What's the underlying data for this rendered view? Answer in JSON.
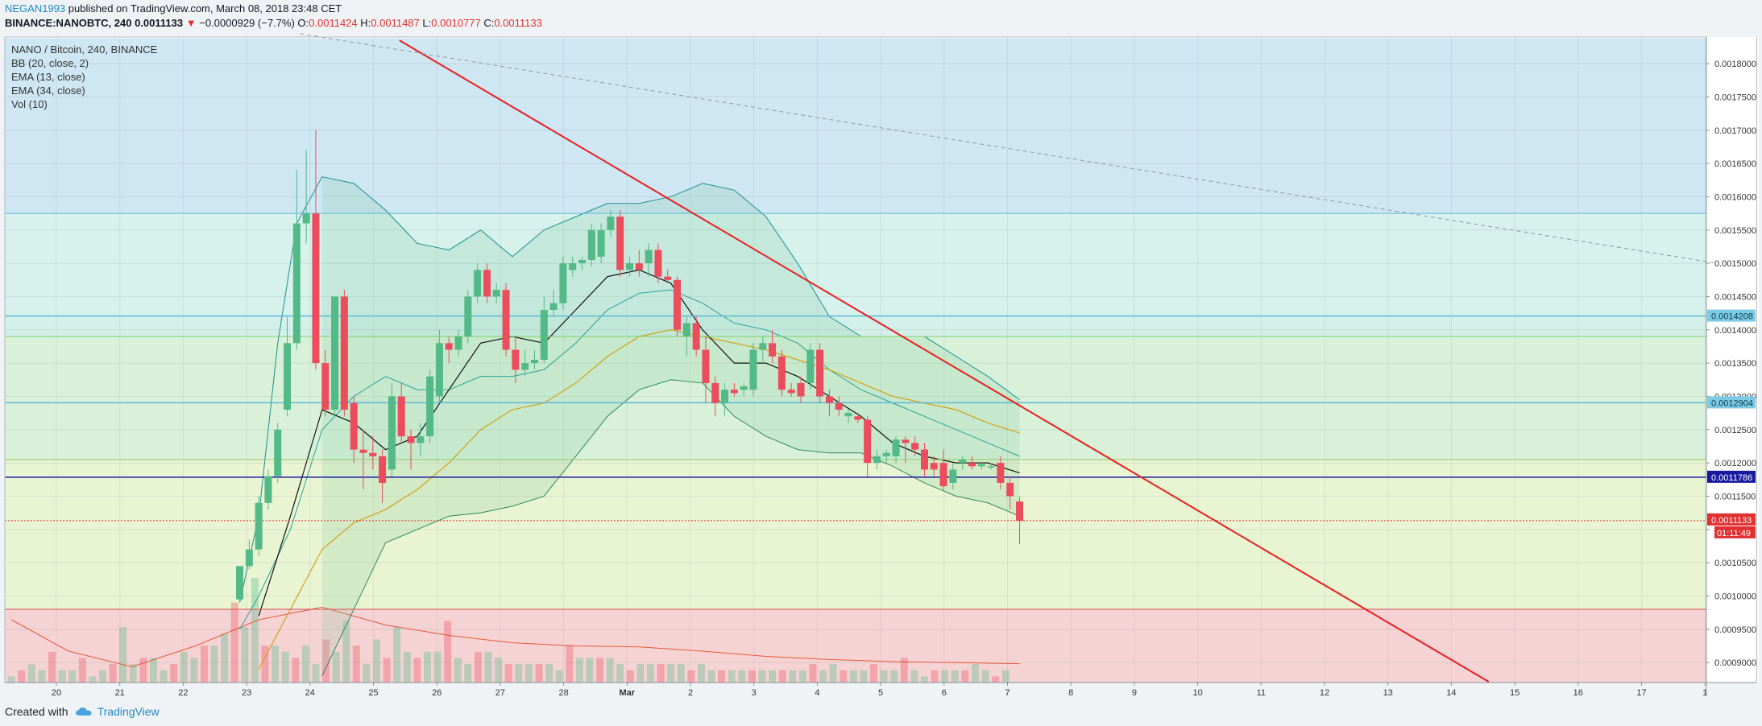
{
  "header": {
    "user": "NEGAN1993",
    "published_text": "published on TradingView.com, March 08, 2018 23:48 CET",
    "symbol": "BINANCE:NANOBTC, 240",
    "last_price": "0.0011133",
    "change_arrow": "▼",
    "change": "−0.0000929 (−7.7%)",
    "o_label": "O:",
    "o_value": "0.0011424",
    "h_label": "H:",
    "h_value": "0.0011487",
    "l_label": "L:",
    "l_value": "0.0010777",
    "c_label": "C:",
    "c_value": "0.0011133"
  },
  "legend": [
    "NANO / Bitcoin, 240, BINANCE",
    "BB (20, close, 2)",
    "EMA (13, close)",
    "EMA (34, close)",
    "Vol (10)"
  ],
  "footer": {
    "created_with": "Created with",
    "brand": "TradingView"
  },
  "colors": {
    "up": "#53b987",
    "down": "#eb4d5c",
    "ema13": "#111111",
    "ema34": "#d4a017",
    "bb_upper": "#1b8f8f",
    "bb_basis": "#2aa198",
    "bb_lower": "#2e8b57",
    "trendline": "#e62020",
    "support": "#1a1aa0",
    "current_price": "#e03030",
    "vol_ma": "#e8583a"
  },
  "chart_data": {
    "type": "candlestick",
    "y_axis": {
      "range": [
        0.00087,
        0.00184
      ],
      "ticks": [
        "0.0018000",
        "0.0017500",
        "0.0017000",
        "0.0016500",
        "0.0016000",
        "0.0015500",
        "0.0015000",
        "0.0014500",
        "0.0014000",
        "0.0013500",
        "0.0013000",
        "0.0012500",
        "0.0012000",
        "0.0011500",
        "0.0011000",
        "0.0010500",
        "0.0010000",
        "0.0009500",
        "0.0009000"
      ]
    },
    "x_axis": {
      "ticks": [
        "20",
        "21",
        "22",
        "23",
        "24",
        "25",
        "26",
        "27",
        "28",
        "Mar",
        "2",
        "3",
        "4",
        "5",
        "6",
        "7",
        "8",
        "9",
        "10",
        "11",
        "12",
        "13",
        "14",
        "15",
        "16",
        "17",
        "1"
      ]
    },
    "zones": [
      {
        "from": 0.001838,
        "to": 0.001575,
        "color": "#cfe6f3"
      },
      {
        "from": 0.001575,
        "to": 0.00142,
        "color": "#d7f1ec"
      },
      {
        "from": 0.00142,
        "to": 0.00139,
        "color": "#d3f0ea"
      },
      {
        "from": 0.00139,
        "to": 0.001205,
        "color": "#d9f1d9"
      },
      {
        "from": 0.001205,
        "to": 0.00098,
        "color": "#e9f4d2"
      },
      {
        "from": 0.00098,
        "to": 0.00087,
        "color": "#f5d3d4"
      }
    ],
    "horizontal_lines": [
      {
        "value": 0.0014208,
        "label": "0.0014208",
        "color": "#5bb9d6",
        "badge": "#7ccbe4"
      },
      {
        "value": 0.0012904,
        "label": "0.0012904",
        "color": "#5bb9d6",
        "badge": "#7ccbe4"
      },
      {
        "value": 0.0011786,
        "label": "0.0011786",
        "color": "#1a1aa0",
        "badge": "#1a1aa0"
      },
      {
        "value": 0.001575,
        "color": "#5bb9d6"
      },
      {
        "value": 0.00139,
        "color": "#7ccf6a"
      },
      {
        "value": 0.001205,
        "color": "#8cc864"
      },
      {
        "value": 0.00098,
        "color": "#d94a55"
      }
    ],
    "current_price": {
      "value": 0.0011133,
      "label": "0.0011133",
      "countdown": "01:11:49"
    },
    "trendlines": [
      {
        "points": [
          [
            6.22,
            0.001835
          ],
          [
            23.4,
            0.000871
          ]
        ],
        "color": "#e62020",
        "style": "solid"
      },
      {
        "points": [
          [
            4.65,
            0.001845
          ],
          [
            27.0,
            0.0015
          ]
        ],
        "color": "#8a9aa5",
        "style": "dashed"
      }
    ],
    "candles": [
      [
        3.7,
        0.000995,
        0.001045,
        0.00099,
        0.001045
      ],
      [
        3.85,
        0.001045,
        0.001085,
        0.00104,
        0.00107
      ],
      [
        4.0,
        0.00107,
        0.00115,
        0.00106,
        0.00114
      ],
      [
        4.15,
        0.00114,
        0.00119,
        0.00113,
        0.00118
      ],
      [
        4.3,
        0.00118,
        0.00126,
        0.00117,
        0.00125
      ],
      [
        4.45,
        0.00128,
        0.00142,
        0.00127,
        0.00138
      ],
      [
        4.6,
        0.00138,
        0.00164,
        0.00137,
        0.00156
      ],
      [
        4.75,
        0.00156,
        0.00167,
        0.00153,
        0.001575
      ],
      [
        4.9,
        0.001575,
        0.0017,
        0.00134,
        0.00135
      ],
      [
        5.05,
        0.00135,
        0.00137,
        0.00127,
        0.00128
      ],
      [
        5.2,
        0.00128,
        0.00145,
        0.00127,
        0.00145
      ],
      [
        5.35,
        0.00145,
        0.00146,
        0.00127,
        0.00128
      ],
      [
        5.5,
        0.00129,
        0.0013,
        0.0012,
        0.00122
      ],
      [
        5.65,
        0.00122,
        0.00125,
        0.00116,
        0.001215
      ],
      [
        5.8,
        0.001215,
        0.00124,
        0.00119,
        0.00121
      ],
      [
        5.95,
        0.00121,
        0.00122,
        0.00114,
        0.00117
      ],
      [
        6.1,
        0.00119,
        0.00132,
        0.00118,
        0.0013
      ],
      [
        6.25,
        0.0013,
        0.00132,
        0.00123,
        0.00124
      ],
      [
        6.4,
        0.00124,
        0.00125,
        0.00119,
        0.00123
      ],
      [
        6.55,
        0.00123,
        0.00126,
        0.00121,
        0.00124
      ],
      [
        6.7,
        0.00124,
        0.00134,
        0.00123,
        0.00133
      ],
      [
        6.85,
        0.0013,
        0.0014,
        0.00129,
        0.00138
      ],
      [
        7.0,
        0.00138,
        0.00139,
        0.00135,
        0.00137
      ],
      [
        7.15,
        0.00137,
        0.0014,
        0.00136,
        0.00139
      ],
      [
        7.3,
        0.00139,
        0.00146,
        0.00138,
        0.00145
      ],
      [
        7.45,
        0.00145,
        0.0015,
        0.00144,
        0.00149
      ],
      [
        7.6,
        0.00149,
        0.0015,
        0.00144,
        0.00145
      ],
      [
        7.75,
        0.00145,
        0.00147,
        0.00144,
        0.00146
      ],
      [
        7.9,
        0.00146,
        0.00147,
        0.00136,
        0.00137
      ],
      [
        8.05,
        0.00137,
        0.00139,
        0.00132,
        0.00134
      ],
      [
        8.2,
        0.00134,
        0.00137,
        0.00133,
        0.00135
      ],
      [
        8.35,
        0.00135,
        0.00137,
        0.00134,
        0.001355
      ],
      [
        8.5,
        0.001355,
        0.00145,
        0.00135,
        0.00143
      ],
      [
        8.65,
        0.00143,
        0.00146,
        0.00142,
        0.00144
      ],
      [
        8.8,
        0.00144,
        0.00151,
        0.00143,
        0.0015
      ],
      [
        8.95,
        0.00149,
        0.00151,
        0.00148,
        0.0015
      ],
      [
        9.1,
        0.0015,
        0.00151,
        0.00149,
        0.001505
      ],
      [
        9.25,
        0.001505,
        0.00156,
        0.001495,
        0.00155
      ],
      [
        9.4,
        0.00151,
        0.00156,
        0.0015,
        0.00155
      ],
      [
        9.55,
        0.00155,
        0.00158,
        0.00154,
        0.00157
      ],
      [
        9.7,
        0.00157,
        0.00158,
        0.00148,
        0.00149
      ],
      [
        9.85,
        0.00149,
        0.00151,
        0.00148,
        0.0015
      ],
      [
        10.0,
        0.0015,
        0.00152,
        0.00148,
        0.00149
      ],
      [
        10.15,
        0.0015,
        0.00153,
        0.00148,
        0.00152
      ],
      [
        10.3,
        0.00152,
        0.00153,
        0.00147,
        0.00148
      ],
      [
        10.45,
        0.00148,
        0.00149,
        0.00147,
        0.001475
      ],
      [
        10.6,
        0.001475,
        0.00148,
        0.00139,
        0.0014
      ],
      [
        10.75,
        0.00139,
        0.00142,
        0.00136,
        0.00141
      ],
      [
        10.9,
        0.00141,
        0.00142,
        0.00136,
        0.00137
      ],
      [
        11.05,
        0.00137,
        0.00139,
        0.00129,
        0.00132
      ],
      [
        11.2,
        0.00132,
        0.00133,
        0.00127,
        0.00129
      ],
      [
        11.35,
        0.00129,
        0.00132,
        0.00127,
        0.00131
      ],
      [
        11.5,
        0.00131,
        0.00132,
        0.0013,
        0.001305
      ],
      [
        11.65,
        0.00131,
        0.00132,
        0.0013,
        0.001315
      ],
      [
        11.8,
        0.00131,
        0.00138,
        0.0013,
        0.00137
      ],
      [
        11.95,
        0.00137,
        0.00139,
        0.00135,
        0.00138
      ],
      [
        12.1,
        0.00138,
        0.0014,
        0.00135,
        0.00136
      ],
      [
        12.25,
        0.00136,
        0.00137,
        0.0013,
        0.00131
      ],
      [
        12.4,
        0.00131,
        0.00132,
        0.0013,
        0.001305
      ],
      [
        12.55,
        0.00132,
        0.00133,
        0.00129,
        0.0013
      ],
      [
        12.7,
        0.00132,
        0.00138,
        0.00131,
        0.00137
      ],
      [
        12.85,
        0.00137,
        0.00138,
        0.00129,
        0.0013
      ],
      [
        13.0,
        0.0013,
        0.00131,
        0.00127,
        0.00129
      ],
      [
        13.15,
        0.00129,
        0.0013,
        0.00127,
        0.00128
      ],
      [
        13.3,
        0.00127,
        0.00128,
        0.00126,
        0.001275
      ],
      [
        13.45,
        0.00127,
        0.001275,
        0.00126,
        0.001265
      ],
      [
        13.6,
        0.001265,
        0.00127,
        0.00118,
        0.0012
      ],
      [
        13.75,
        0.0012,
        0.00122,
        0.00119,
        0.00121
      ],
      [
        13.9,
        0.00121,
        0.00122,
        0.0012,
        0.001215
      ],
      [
        14.05,
        0.00121,
        0.00124,
        0.0012,
        0.001235
      ],
      [
        14.2,
        0.001235,
        0.00124,
        0.0012,
        0.00123
      ],
      [
        14.35,
        0.00123,
        0.00124,
        0.00121,
        0.00122
      ],
      [
        14.5,
        0.00122,
        0.00123,
        0.00118,
        0.00119
      ],
      [
        14.65,
        0.0012,
        0.00121,
        0.00118,
        0.00119
      ],
      [
        14.8,
        0.0012,
        0.00122,
        0.00116,
        0.001165
      ],
      [
        14.95,
        0.00117,
        0.0012,
        0.00116,
        0.00119
      ],
      [
        15.1,
        0.0012,
        0.00121,
        0.00119,
        0.001205
      ],
      [
        15.25,
        0.0012,
        0.00121,
        0.00119,
        0.001195
      ],
      [
        15.4,
        0.001195,
        0.0012,
        0.00119,
        0.001198
      ],
      [
        15.55,
        0.001195,
        0.0012,
        0.00119,
        0.001195
      ],
      [
        15.7,
        0.0012,
        0.00121,
        0.00116,
        0.00117
      ],
      [
        15.85,
        0.00117,
        0.00118,
        0.00113,
        0.00115
      ],
      [
        16.0,
        0.001142,
        0.001149,
        0.001078,
        0.001113
      ]
    ],
    "ema13": [
      [
        4.0,
        0.00097
      ],
      [
        4.5,
        0.00112
      ],
      [
        5.0,
        0.00128
      ],
      [
        5.5,
        0.00126
      ],
      [
        6.0,
        0.00122
      ],
      [
        6.5,
        0.00124
      ],
      [
        7.0,
        0.00131
      ],
      [
        7.5,
        0.00138
      ],
      [
        8.0,
        0.00139
      ],
      [
        8.5,
        0.00138
      ],
      [
        9.0,
        0.00143
      ],
      [
        9.5,
        0.00148
      ],
      [
        10.0,
        0.00149
      ],
      [
        10.5,
        0.00147
      ],
      [
        11.0,
        0.0014
      ],
      [
        11.5,
        0.00135
      ],
      [
        12.0,
        0.00135
      ],
      [
        12.5,
        0.00133
      ],
      [
        13.0,
        0.0013
      ],
      [
        13.5,
        0.00127
      ],
      [
        14.0,
        0.00123
      ],
      [
        14.5,
        0.00121
      ],
      [
        15.0,
        0.0012
      ],
      [
        15.5,
        0.0012
      ],
      [
        16.0,
        0.001185
      ]
    ],
    "ema34": [
      [
        4.0,
        0.00089
      ],
      [
        4.5,
        0.00098
      ],
      [
        5.0,
        0.00107
      ],
      [
        5.5,
        0.00111
      ],
      [
        6.0,
        0.00113
      ],
      [
        6.5,
        0.00116
      ],
      [
        7.0,
        0.0012
      ],
      [
        7.5,
        0.00125
      ],
      [
        8.0,
        0.00128
      ],
      [
        8.5,
        0.00129
      ],
      [
        9.0,
        0.00132
      ],
      [
        9.5,
        0.00136
      ],
      [
        10.0,
        0.00139
      ],
      [
        10.5,
        0.0014
      ],
      [
        11.0,
        0.00139
      ],
      [
        11.5,
        0.00138
      ],
      [
        12.0,
        0.00137
      ],
      [
        12.5,
        0.001355
      ],
      [
        13.0,
        0.00134
      ],
      [
        13.5,
        0.00132
      ],
      [
        14.0,
        0.0013
      ],
      [
        14.5,
        0.00129
      ],
      [
        15.0,
        0.00128
      ],
      [
        15.5,
        0.00126
      ],
      [
        16.0,
        0.001245
      ]
    ],
    "bb_upper": [
      [
        3.7,
        0.00099
      ],
      [
        4.0,
        0.00112
      ],
      [
        4.3,
        0.00138
      ],
      [
        4.6,
        0.00156
      ],
      [
        5.0,
        0.00163
      ],
      [
        5.5,
        0.00162
      ],
      [
        6.0,
        0.00158
      ],
      [
        6.5,
        0.00153
      ],
      [
        7.0,
        0.00152
      ],
      [
        7.5,
        0.00155
      ],
      [
        8.0,
        0.00151
      ],
      [
        8.5,
        0.00155
      ],
      [
        9.0,
        0.00157
      ],
      [
        9.5,
        0.00159
      ],
      [
        10.0,
        0.00159
      ],
      [
        10.5,
        0.0016
      ],
      [
        11.0,
        0.00162
      ],
      [
        11.5,
        0.00161
      ],
      [
        12.0,
        0.00157
      ],
      [
        12.5,
        0.0015
      ],
      [
        13.0,
        0.00142
      ],
      [
        13.5,
        0.00139
      ],
      [
        14.0,
        0.00139
      ],
      [
        14.5,
        0.00139
      ],
      [
        15.0,
        0.00136
      ],
      [
        15.5,
        0.00133
      ],
      [
        16.0,
        0.001295
      ]
    ],
    "bb_basis": [
      [
        3.7,
        0.00095
      ],
      [
        4.0,
        0.001
      ],
      [
        4.5,
        0.0011
      ],
      [
        5.0,
        0.00125
      ],
      [
        5.5,
        0.0013
      ],
      [
        6.0,
        0.00133
      ],
      [
        6.5,
        0.00131
      ],
      [
        7.0,
        0.00131
      ],
      [
        7.5,
        0.00133
      ],
      [
        8.0,
        0.00133
      ],
      [
        8.5,
        0.00134
      ],
      [
        9.0,
        0.00138
      ],
      [
        9.5,
        0.00143
      ],
      [
        10.0,
        0.001455
      ],
      [
        10.5,
        0.00146
      ],
      [
        11.0,
        0.00144
      ],
      [
        11.5,
        0.00141
      ],
      [
        12.0,
        0.0014
      ],
      [
        12.5,
        0.00138
      ],
      [
        13.0,
        0.00134
      ],
      [
        13.5,
        0.00131
      ],
      [
        14.0,
        0.00129
      ],
      [
        14.5,
        0.00127
      ],
      [
        15.0,
        0.00125
      ],
      [
        15.5,
        0.00123
      ],
      [
        16.0,
        0.00121
      ]
    ],
    "bb_lower": [
      [
        5.0,
        0.00088
      ],
      [
        5.5,
        0.00098
      ],
      [
        6.0,
        0.00108
      ],
      [
        6.5,
        0.0011
      ],
      [
        7.0,
        0.00112
      ],
      [
        7.5,
        0.001125
      ],
      [
        8.0,
        0.001135
      ],
      [
        8.5,
        0.00115
      ],
      [
        9.0,
        0.00121
      ],
      [
        9.5,
        0.00127
      ],
      [
        10.0,
        0.00131
      ],
      [
        10.5,
        0.001325
      ],
      [
        11.0,
        0.00132
      ],
      [
        11.5,
        0.00127
      ],
      [
        12.0,
        0.00124
      ],
      [
        12.5,
        0.00122
      ],
      [
        13.0,
        0.001215
      ],
      [
        13.5,
        0.001215
      ],
      [
        14.0,
        0.001195
      ],
      [
        14.5,
        0.00117
      ],
      [
        15.0,
        0.00115
      ],
      [
        15.5,
        0.00114
      ],
      [
        16.0,
        0.00112
      ]
    ],
    "volume": [
      1,
      2,
      3,
      2,
      5,
      2,
      2,
      4,
      1,
      2,
      3,
      9,
      3,
      4,
      4,
      2,
      3,
      5,
      4,
      6,
      6,
      8,
      13,
      9,
      17,
      6,
      6,
      5,
      4,
      6,
      3,
      7,
      5,
      10,
      6,
      3,
      7,
      4,
      9,
      5,
      4,
      5,
      5,
      10,
      4,
      3,
      5,
      5,
      4,
      3,
      3,
      3,
      3,
      3,
      2,
      6,
      4,
      4,
      4,
      4,
      3,
      2,
      3,
      3,
      3,
      3,
      3,
      2,
      3,
      2,
      2,
      2,
      2,
      2,
      2,
      2,
      2,
      2,
      2,
      3,
      2,
      3,
      2,
      2,
      2,
      3,
      2,
      2,
      4,
      2,
      1,
      2,
      2,
      2,
      2,
      3,
      2,
      1,
      2
    ],
    "volume_ma": [
      [
        0.1,
        0.6
      ],
      [
        1.0,
        0.3
      ],
      [
        2.0,
        0.15
      ],
      [
        3.0,
        0.35
      ],
      [
        4.0,
        0.6
      ],
      [
        5.0,
        0.72
      ],
      [
        6.0,
        0.55
      ],
      [
        7.0,
        0.45
      ],
      [
        8.0,
        0.38
      ],
      [
        9.0,
        0.35
      ],
      [
        10.0,
        0.34
      ],
      [
        11.0,
        0.3
      ],
      [
        12.0,
        0.25
      ],
      [
        13.0,
        0.22
      ],
      [
        14.0,
        0.2
      ],
      [
        15.0,
        0.19
      ],
      [
        16.0,
        0.18
      ]
    ]
  }
}
